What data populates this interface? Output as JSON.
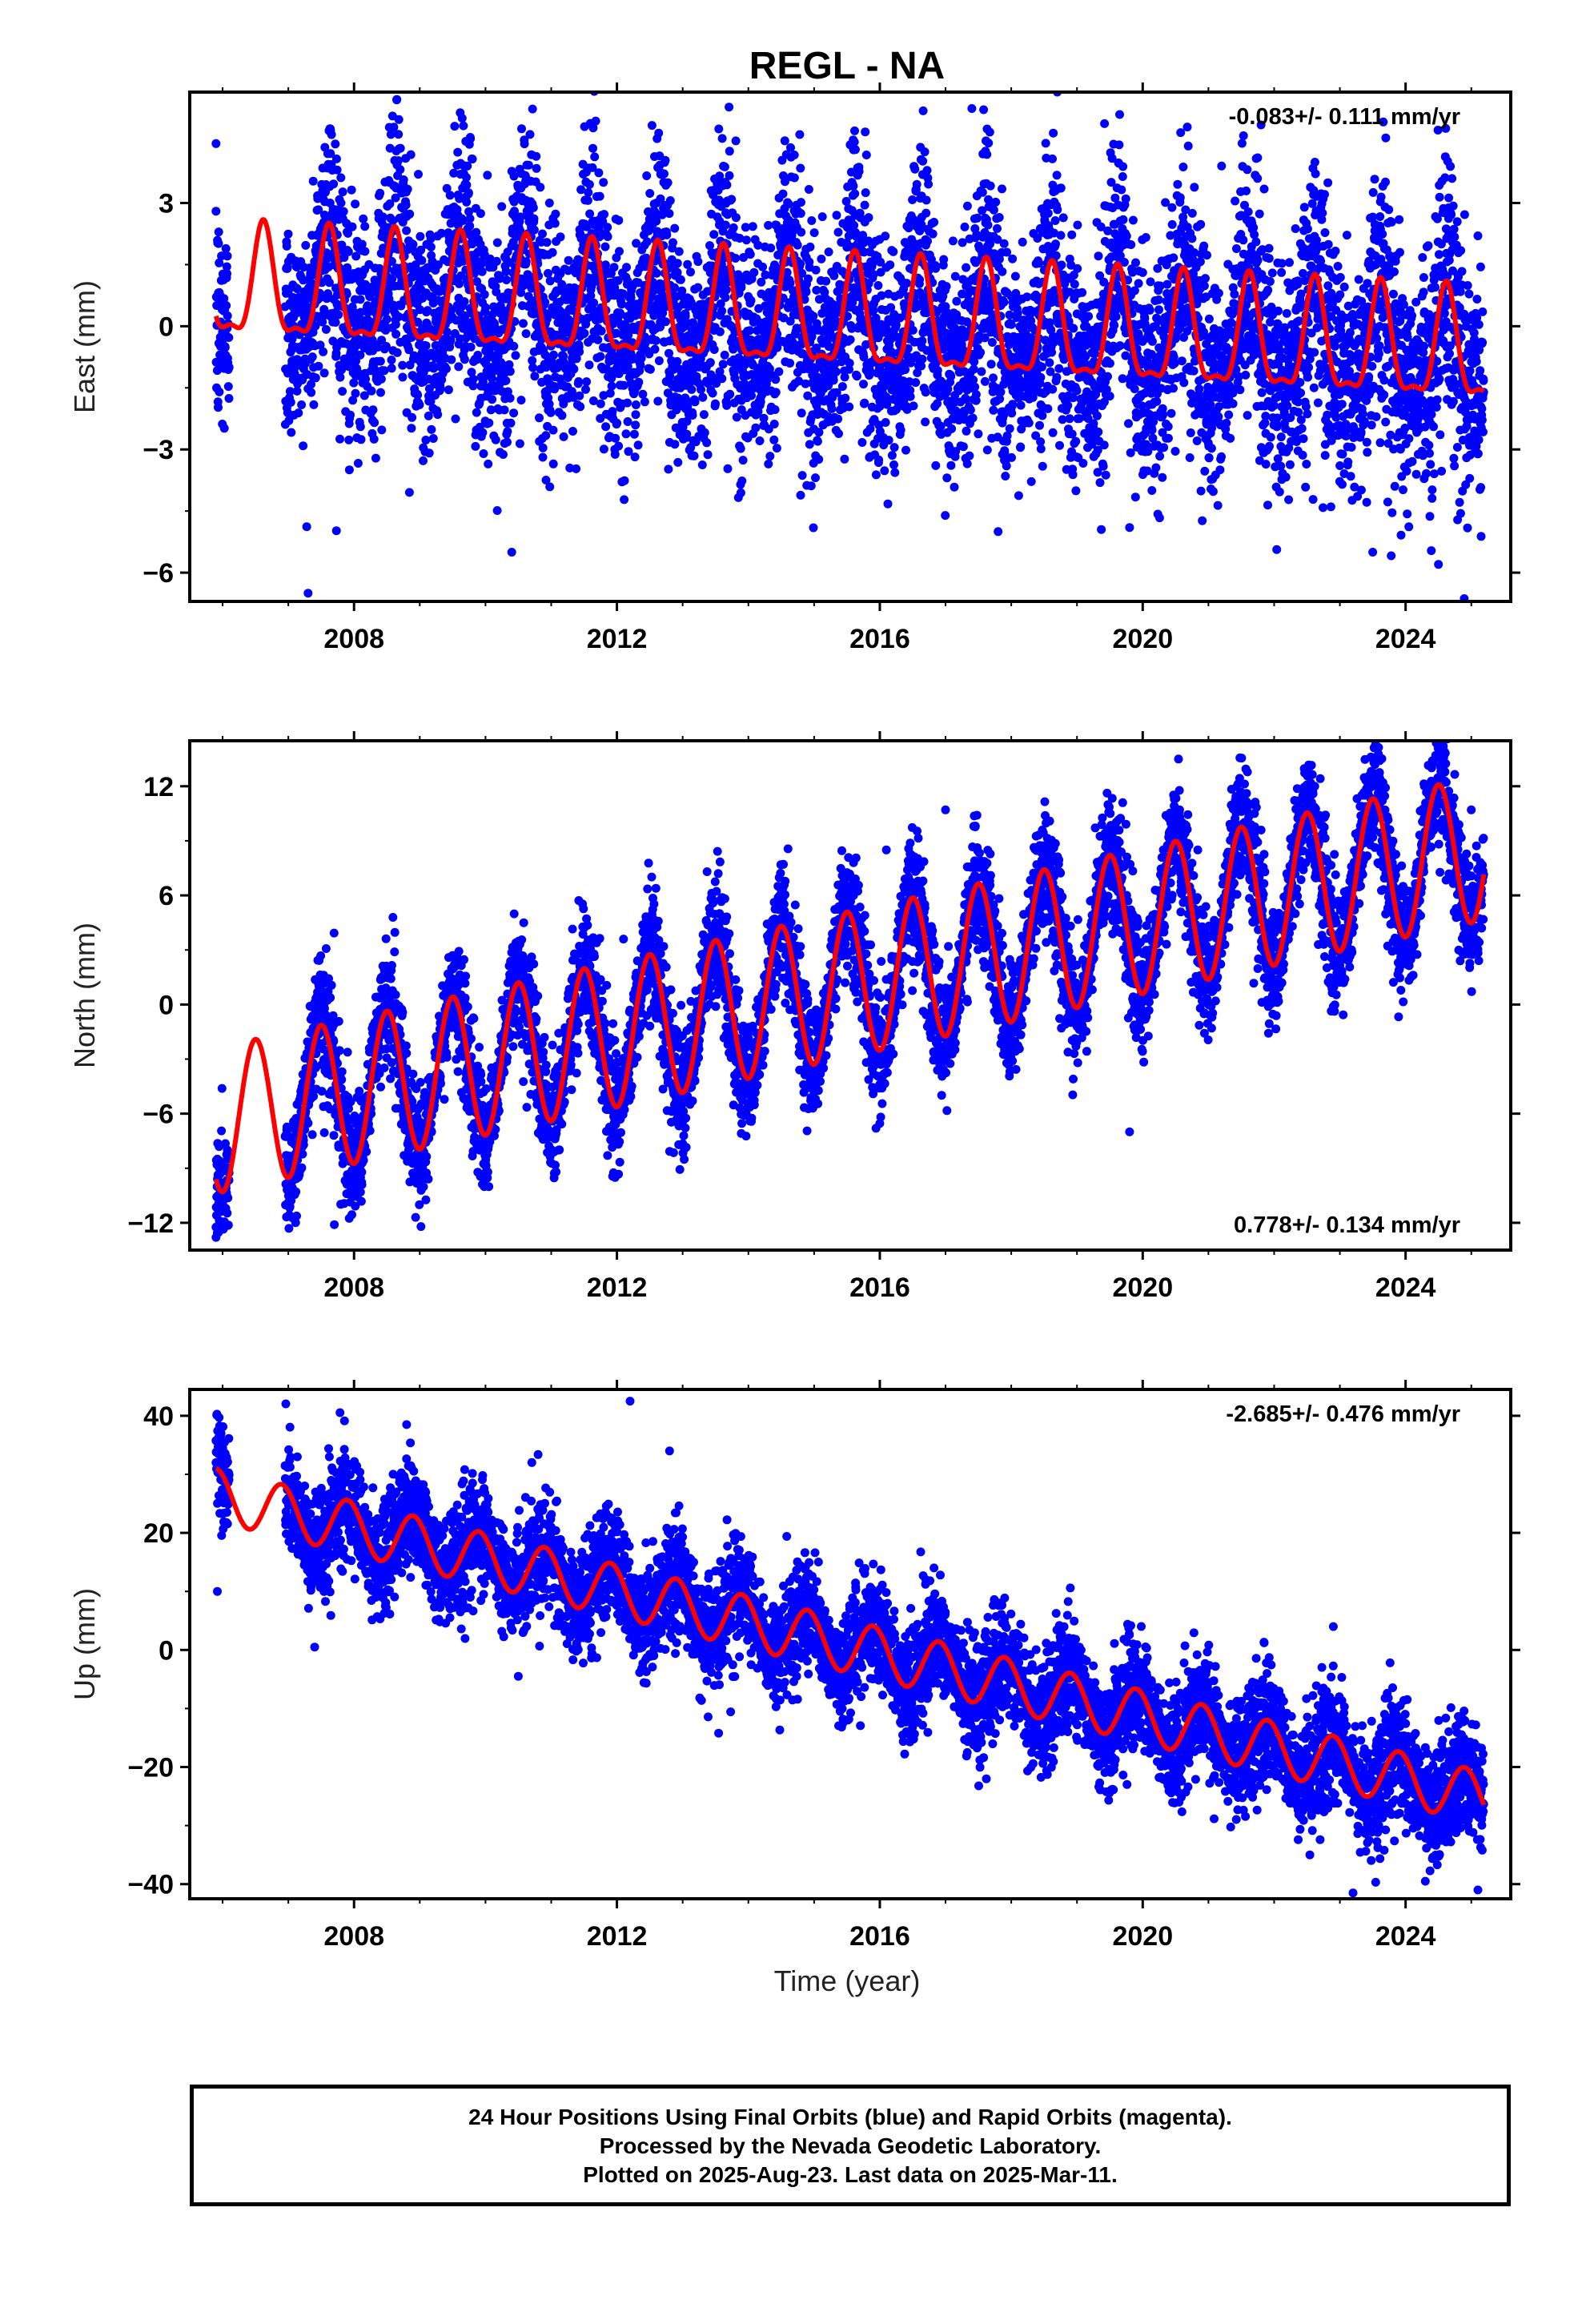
{
  "title": "REGL - NA",
  "x_axis_label": "Time (year)",
  "footer": {
    "line1": "24 Hour Positions Using Final Orbits (blue) and Rapid Orbits (magenta).",
    "line2": "Processed by the Nevada Geodetic Laboratory.",
    "line3": "Plotted on 2025-Aug-23. Last data on 2025-Mar-11."
  },
  "colors": {
    "data_points": "#0000ff",
    "model_fit": "#ff0000",
    "frame": "#000000"
  },
  "chart_data": [
    {
      "type": "scatter",
      "component": "east",
      "ylabel": "East (mm)",
      "rate_text": "-0.083+/- 0.111 mm/yr",
      "rate_position": "top-right",
      "xlim": [
        2005.5,
        2025.6
      ],
      "ylim": [
        -6.7,
        5.7
      ],
      "x_ticks": [
        2008,
        2012,
        2016,
        2020,
        2024
      ],
      "y_ticks": [
        -6,
        -3,
        0,
        3
      ],
      "y_tick_labels": [
        "−6",
        "−3",
        "0",
        "3"
      ],
      "grid": false,
      "data_start": 2005.9,
      "data_gap": [
        2006.1,
        2006.95
      ],
      "data_end": 2025.19,
      "scatter_sigma": 1.3,
      "series": [
        {
          "name": "daily position",
          "color": "#0000ff",
          "x_y": [
            [
              2005.9,
              2.8
            ],
            [
              2005.95,
              -1.6
            ],
            [
              2007.6,
              4.2
            ],
            [
              2007.3,
              -6.5
            ],
            [
              2009.7,
              4.5
            ],
            [
              2010.4,
              -5.5
            ],
            [
              2017.4,
              5.3
            ],
            [
              2018.7,
              5.7
            ],
            [
              2021.8,
              4.9
            ],
            [
              2017.8,
              -5.0
            ],
            [
              2023.5,
              -5.5
            ],
            [
              2024.5,
              -5.8
            ],
            [
              2019.8,
              -4.9
            ],
            [
              2021.2,
              3.9
            ],
            [
              2025.1,
              2.2
            ]
          ]
        },
        {
          "name": "model fit",
          "color": "#ff0000",
          "offset": 0.9,
          "slope": -0.083,
          "t0": 2006.0,
          "amp_annual": 1.3,
          "phase_annual": 2007.62,
          "amp_semiannual": 0.45,
          "phase_semiannual": 2007.62,
          "start": 2005.9,
          "end": 2025.19
        }
      ]
    },
    {
      "type": "scatter",
      "component": "north",
      "ylabel": "North (mm)",
      "rate_text": "0.778+/- 0.134 mm/yr",
      "rate_position": "bottom-right",
      "xlim": [
        2005.5,
        2025.6
      ],
      "ylim": [
        -13.5,
        14.5
      ],
      "x_ticks": [
        2008,
        2012,
        2016,
        2020,
        2024
      ],
      "y_ticks": [
        -12,
        -6,
        0,
        6,
        12
      ],
      "y_tick_labels": [
        "−12",
        "−6",
        "0",
        "6",
        "12"
      ],
      "grid": false,
      "data_start": 2005.9,
      "data_gap": [
        2006.1,
        2006.95
      ],
      "data_end": 2025.19,
      "scatter_sigma": 1.5,
      "series": [
        {
          "name": "daily position",
          "color": "#0000ff",
          "x_y": [
            [
              2005.9,
              -12.8
            ],
            [
              2005.92,
              -8.5
            ],
            [
              2007.7,
              -12.1
            ],
            [
              2008.1,
              -9.5
            ],
            [
              2016.1,
              8.5
            ],
            [
              2017.0,
              10.7
            ],
            [
              2019.8,
              -7.0
            ],
            [
              2023.6,
              12.7
            ],
            [
              2024.6,
              13.8
            ],
            [
              2025.0,
              10.7
            ],
            [
              2012.1,
              3.6
            ],
            [
              2015.6,
              7.8
            ],
            [
              2021.7,
              10.5
            ],
            [
              2022.5,
              11.8
            ],
            [
              2013.5,
              4.5
            ]
          ]
        },
        {
          "name": "model fit",
          "color": "#ff0000",
          "offset": -6.3,
          "slope": 0.778,
          "t0": 2006.0,
          "amp_annual": 4.0,
          "phase_annual": 2007.5,
          "amp_semiannual": 0.0,
          "phase_semiannual": 2007.5,
          "start": 2005.9,
          "end": 2025.19
        }
      ]
    },
    {
      "type": "scatter",
      "component": "up",
      "ylabel": "Up (mm)",
      "rate_text": "-2.685+/- 0.476 mm/yr",
      "rate_position": "top-right",
      "xlim": [
        2005.5,
        2025.6
      ],
      "ylim": [
        -42.5,
        44.5
      ],
      "x_ticks": [
        2008,
        2012,
        2016,
        2020,
        2024
      ],
      "y_ticks": [
        -40,
        -20,
        0,
        20,
        40
      ],
      "y_tick_labels": [
        "−40",
        "−20",
        "0",
        "20",
        "40"
      ],
      "grid": false,
      "data_start": 2005.9,
      "data_gap": [
        2006.1,
        2006.95
      ],
      "data_end": 2025.19,
      "scatter_sigma": 4.3,
      "series": [
        {
          "name": "daily position",
          "color": "#0000ff",
          "x_y": [
            [
              2005.9,
              32.0
            ],
            [
              2005.92,
              10.0
            ],
            [
              2008.8,
              38.5
            ],
            [
              2012.2,
              42.5
            ],
            [
              2012.8,
              34.0
            ],
            [
              2007.4,
              0.5
            ],
            [
              2010.5,
              -4.5
            ],
            [
              2016.7,
              12.0
            ],
            [
              2023.2,
              -41.5
            ],
            [
              2025.1,
              -41.0
            ],
            [
              2024.3,
              -39.5
            ],
            [
              2013.4,
              13.0
            ],
            [
              2020.9,
              -6.0
            ],
            [
              2022.9,
              4.0
            ],
            [
              2018.2,
              -0.5
            ]
          ]
        },
        {
          "name": "model fit",
          "color": "#ff0000",
          "offset": 26.2,
          "slope": -2.685,
          "t0": 2006.0,
          "amp_annual": 4.5,
          "phase_annual": 2006.9,
          "amp_semiannual": 0.0,
          "phase_semiannual": 2006.9,
          "start": 2005.9,
          "end": 2025.19
        }
      ]
    }
  ]
}
